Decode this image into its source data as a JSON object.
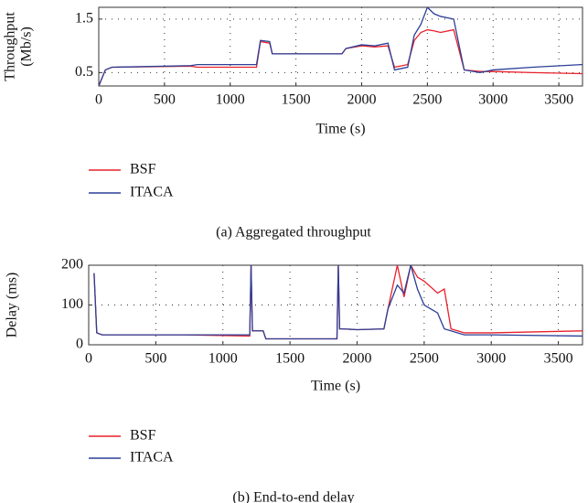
{
  "chart_data": [
    {
      "type": "line",
      "caption": "(a)  Aggregated throughput",
      "xlabel": "Time (s)",
      "ylabel": [
        "Throughput",
        "(Mb/s)"
      ],
      "x": [
        0,
        50,
        100,
        700,
        750,
        1200,
        1230,
        1300,
        1320,
        1850,
        1880,
        2000,
        2100,
        2200,
        2250,
        2350,
        2400,
        2450,
        2500,
        2550,
        2600,
        2700,
        2780,
        2900,
        3000,
        3300,
        3680
      ],
      "series": [
        {
          "name": "BSF",
          "color": "#e8212b",
          "values": [
            0.25,
            0.55,
            0.6,
            0.62,
            0.6,
            0.6,
            1.08,
            1.05,
            0.85,
            0.85,
            0.95,
            1.0,
            0.98,
            1.0,
            0.6,
            0.65,
            1.1,
            1.25,
            1.3,
            1.28,
            1.25,
            1.3,
            0.55,
            0.52,
            0.52,
            0.5,
            0.48
          ]
        },
        {
          "name": "ITACA",
          "color": "#2b3f97",
          "values": [
            0.25,
            0.55,
            0.6,
            0.63,
            0.65,
            0.65,
            1.1,
            1.08,
            0.85,
            0.85,
            0.95,
            1.02,
            1.0,
            1.05,
            0.55,
            0.6,
            1.2,
            1.4,
            1.72,
            1.6,
            1.55,
            1.5,
            0.55,
            0.5,
            0.55,
            0.6,
            0.65
          ]
        }
      ],
      "xlim": [
        0,
        3680
      ],
      "xticks": [
        0,
        500,
        1000,
        1500,
        2000,
        2500,
        3000,
        3500
      ],
      "ylim": [
        0.25,
        1.72
      ],
      "yticks": [
        0.5,
        1.5
      ],
      "grid": true
    },
    {
      "type": "line",
      "caption": "(b)  End-to-end delay",
      "xlabel": "Time (s)",
      "ylabel": "Delay (ms)",
      "x": [
        40,
        60,
        100,
        700,
        1200,
        1210,
        1220,
        1300,
        1320,
        1850,
        1860,
        1870,
        1890,
        2000,
        2200,
        2230,
        2300,
        2350,
        2400,
        2450,
        2500,
        2600,
        2650,
        2700,
        2750,
        2800,
        3000,
        3680
      ],
      "series": [
        {
          "name": "BSF",
          "color": "#e8212b",
          "values": [
            180,
            30,
            25,
            25,
            22,
            200,
            35,
            35,
            15,
            15,
            200,
            40,
            40,
            38,
            40,
            90,
            200,
            120,
            200,
            170,
            160,
            130,
            140,
            40,
            35,
            30,
            30,
            35
          ]
        },
        {
          "name": "ITACA",
          "color": "#2b3f97",
          "values": [
            180,
            30,
            25,
            25,
            25,
            200,
            35,
            35,
            15,
            15,
            200,
            40,
            40,
            38,
            40,
            90,
            150,
            130,
            200,
            140,
            100,
            80,
            40,
            35,
            30,
            25,
            25,
            22
          ]
        }
      ],
      "xlim": [
        0,
        3680
      ],
      "xticks": [
        0,
        500,
        1000,
        1500,
        2000,
        2500,
        3000,
        3500
      ],
      "ylim": [
        0,
        200
      ],
      "yticks": [
        0,
        100,
        200
      ],
      "grid": true
    }
  ]
}
